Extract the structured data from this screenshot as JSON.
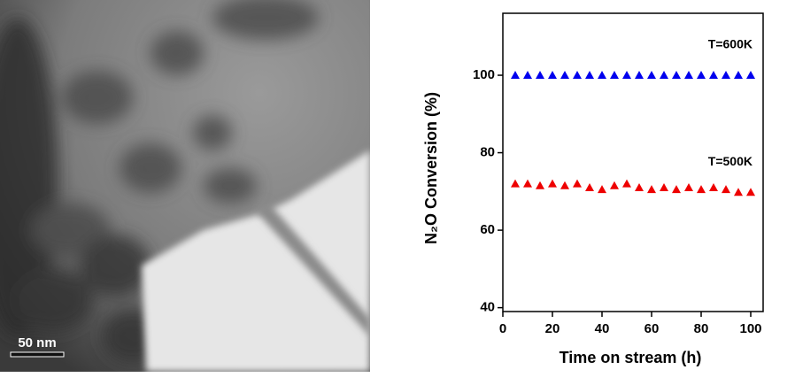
{
  "image": {
    "scale_bar": "50 nm"
  },
  "chart_data": {
    "type": "scatter",
    "x_label": "Time on stream (h)",
    "y_label": "N₂O Conversion (%)",
    "xlim": [
      0,
      105
    ],
    "xticks": [
      0,
      20,
      40,
      60,
      80,
      100
    ],
    "ylim": [
      39,
      116
    ],
    "yticks": [
      40,
      60,
      80,
      100
    ],
    "x": [
      5,
      10,
      15,
      20,
      25,
      30,
      35,
      40,
      45,
      50,
      55,
      60,
      65,
      70,
      75,
      80,
      85,
      90,
      95,
      100
    ],
    "series": [
      {
        "name": "T=600K",
        "color": "#0000ee",
        "values": [
          100,
          100,
          100,
          100,
          100,
          100,
          100,
          100,
          100,
          100,
          100,
          100,
          100,
          100,
          100,
          100,
          100,
          100,
          100,
          100
        ]
      },
      {
        "name": "T=500K",
        "color": "#ee0000",
        "values": [
          72,
          72,
          71.5,
          72,
          71.5,
          72,
          71,
          70.5,
          71.5,
          72,
          71,
          70.5,
          71,
          70.5,
          71,
          70.5,
          71,
          70.5,
          69.8,
          69.8
        ]
      }
    ]
  }
}
